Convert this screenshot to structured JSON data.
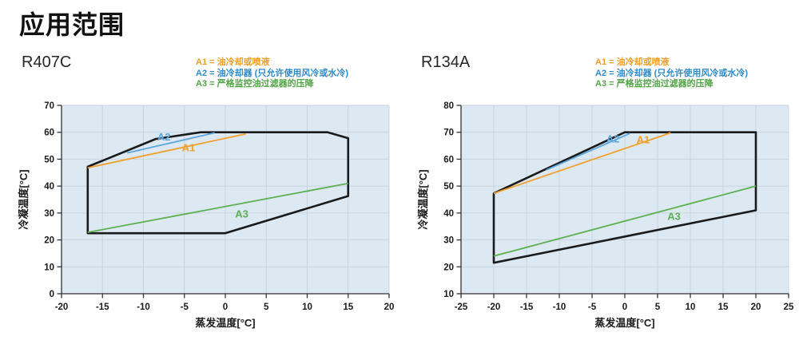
{
  "page_title": "应用范围",
  "legend": [
    {
      "name": "A1",
      "label": "A1 = 油冷却或喷液",
      "color": "#EF9D26"
    },
    {
      "name": "A2",
      "label": "A2 = 油冷却器 (只允许使用风冷或水冷)",
      "color": "#2E8BC9"
    },
    {
      "name": "A3",
      "label": "A3 = 严格监控油过滤器的压降",
      "color": "#53A447"
    }
  ],
  "colors": {
    "plot_bg": "#dce9f3",
    "grid": "#c7d4e0",
    "axis": "#333333",
    "envelope": "#1a1a1a",
    "text": "#1a1a1a"
  },
  "chart_data": [
    {
      "type": "line",
      "title": "R407C",
      "xlabel": "蒸发温度[°C]",
      "ylabel": "冷凝温度[°C]",
      "xlim": [
        -20,
        20
      ],
      "ylim": [
        0,
        70
      ],
      "xticks": [
        -20,
        -15,
        -10,
        -5,
        0,
        5,
        10,
        15,
        20
      ],
      "yticks": [
        0,
        10,
        20,
        30,
        40,
        50,
        60,
        70
      ],
      "grid": true,
      "envelope": [
        [
          -16.8,
          22.5
        ],
        [
          -16.8,
          47.2
        ],
        [
          -8.5,
          57.5
        ],
        [
          -3,
          60
        ],
        [
          12.5,
          60
        ],
        [
          15,
          57.8
        ],
        [
          15,
          36.3
        ],
        [
          0,
          22.5
        ]
      ],
      "series": [
        {
          "name": "A1",
          "color": "#F2A02B",
          "points": [
            [
              -16.8,
              46.8
            ],
            [
              2.5,
              59.4
            ]
          ],
          "label_at": [
            -4.5,
            54.3
          ]
        },
        {
          "name": "A2",
          "color": "#5BA7DC",
          "points": [
            [
              -12,
              52.3
            ],
            [
              -1.3,
              59.8
            ]
          ],
          "label_at": [
            -7.5,
            58.3
          ]
        },
        {
          "name": "A3",
          "color": "#5CB04E",
          "points": [
            [
              -16.8,
              22.8
            ],
            [
              15,
              41
            ]
          ],
          "label_at": [
            2,
            29.6
          ]
        }
      ]
    },
    {
      "type": "line",
      "title": "R134A",
      "xlabel": "蒸发温度[°C]",
      "ylabel": "冷凝温度[°C]",
      "xlim": [
        -25,
        25
      ],
      "ylim": [
        10,
        80
      ],
      "xticks": [
        -25,
        -20,
        -15,
        -10,
        -5,
        0,
        5,
        10,
        15,
        20,
        25
      ],
      "yticks": [
        10,
        20,
        30,
        40,
        50,
        60,
        70,
        80
      ],
      "grid": true,
      "envelope": [
        [
          -20,
          21.5
        ],
        [
          -20,
          47.3
        ],
        [
          0,
          70
        ],
        [
          20,
          70
        ],
        [
          20,
          41
        ]
      ],
      "series": [
        {
          "name": "A1",
          "color": "#F2A02B",
          "points": [
            [
              -20,
              47.3
            ],
            [
              7,
              69.8
            ]
          ],
          "label_at": [
            2.8,
            67.3
          ]
        },
        {
          "name": "A2",
          "color": "#5BA7DC",
          "points": [
            [
              -12,
              56
            ],
            [
              0.8,
              69.6
            ]
          ],
          "label_at": [
            -1.8,
            67.6
          ]
        },
        {
          "name": "A3",
          "color": "#5CB04E",
          "points": [
            [
              -20,
              24
            ],
            [
              20,
              50
            ]
          ],
          "label_at": [
            7.5,
            38.8
          ]
        }
      ]
    }
  ]
}
